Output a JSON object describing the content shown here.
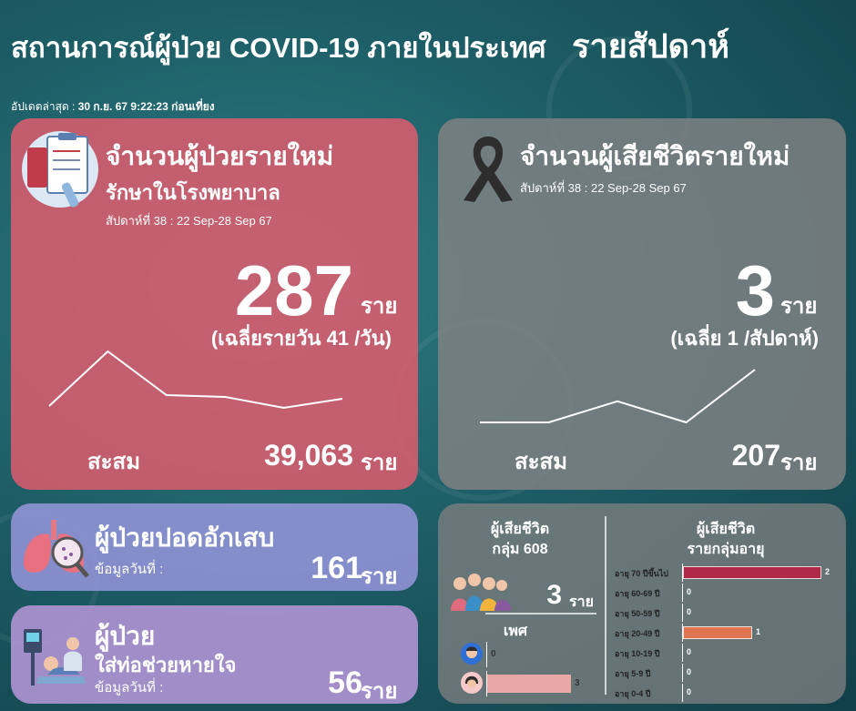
{
  "header": {
    "title": "สถานการณ์ผู้ป่วย COVID-19 ภายในประเทศ",
    "title_weekly": "รายสัปดาห์",
    "updated_label": "อัปเดตล่าสุด :",
    "updated_value": "30 ก.ย. 67 9:22:23 ก่อนเที่ยง"
  },
  "new_cases": {
    "title": "จำนวนผู้ป่วยรายใหม่",
    "subtitle": "รักษาในโรงพยาบาล",
    "week": "สัปดาห์ที่ 38 : 22 Sep-28 Sep 67",
    "value": "287",
    "unit": "ราย",
    "average": "(เฉลี่ยรายวัน 41 /วัน)",
    "cumulative_label": "สะสม",
    "cumulative_value": "39,063",
    "cumulative_unit": "ราย",
    "trend": [
      22,
      52,
      28,
      27,
      21,
      26
    ],
    "icon": "hospital-clipboard-icon"
  },
  "deaths": {
    "title": "จำนวนผู้เสียชีวิตรายใหม่",
    "week": "สัปดาห์ที่ 38 : 22 Sep-28 Sep 67",
    "value": "3",
    "unit": "ราย",
    "average": "(เฉลี่ย 1 /สัปดาห์)",
    "cumulative_label": "สะสม",
    "cumulative_value": "207",
    "cumulative_unit": "ราย",
    "trend": [
      1,
      1,
      3,
      1,
      6
    ],
    "icon": "black-ribbon-icon"
  },
  "pneumonia": {
    "title": "ผู้ป่วยปอดอักเสบ",
    "data_label": "ข้อมูลวันที่ :",
    "value": "161",
    "unit": "ราย",
    "icon": "lungs-icon"
  },
  "ventilator": {
    "title": "ผู้ป่วย",
    "subtitle": "ใส่ท่อช่วยหายใจ",
    "data_label": "ข้อมูลวันที่ :",
    "value": "56",
    "unit": "ราย",
    "icon": "ventilator-patient-icon"
  },
  "death_detail": {
    "group_title": "ผู้เสียชีวิต",
    "group_subtitle": "กลุ่ม 608",
    "group_value": "3",
    "group_unit": "ราย",
    "sex_title": "เพศ",
    "sex": [
      {
        "label": "male-icon",
        "value": 0,
        "color": "#2f6fd6"
      },
      {
        "label": "female-icon",
        "value": 3,
        "color": "#e8a8a8"
      }
    ],
    "age_title": "ผู้เสียชีวิต",
    "age_subtitle": "รายกลุ่มอายุ",
    "age_groups": [
      {
        "label": "อายุ 70 ปีขึ้นไป",
        "value": 2,
        "color": "#b02a48"
      },
      {
        "label": "อายุ 60-69 ปี",
        "value": 0,
        "color": "#b02a48"
      },
      {
        "label": "อายุ 50-59 ปี",
        "value": 0,
        "color": "#b02a48"
      },
      {
        "label": "อายุ 20-49 ปี",
        "value": 1,
        "color": "#e07450"
      },
      {
        "label": "อายุ 10-19 ปี",
        "value": 0,
        "color": "#e07450"
      },
      {
        "label": "อายุ 5-9 ปี",
        "value": 0,
        "color": "#e07450"
      },
      {
        "label": "อายุ 0-4 ปี",
        "value": 0,
        "color": "#e07450"
      }
    ]
  }
}
